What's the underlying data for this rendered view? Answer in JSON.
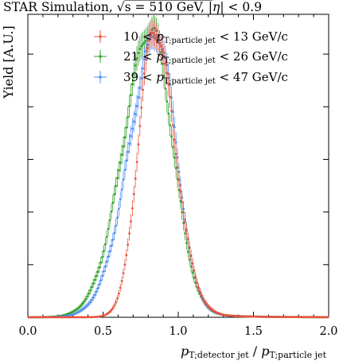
{
  "chart_data": {
    "type": "scatter",
    "title": "STAR Simulation, √s = 510 GeV, |η| < 0.9",
    "title_parts": {
      "lead": "STAR Simulation, ",
      "sqrt": "√",
      "s_eq": "s = 510 GeV, |",
      "eta": "η",
      "tail": "| < 0.9"
    },
    "xlabel": "pT;detector jet / pT;particle jet",
    "xlabel_parts": {
      "p1": "p",
      "sub1": "T;detector jet",
      "slash": " / ",
      "p2": "p",
      "sub2": "T;particle jet"
    },
    "ylabel": "Yield [A.U.]",
    "xlim": [
      0.0,
      2.0
    ],
    "ylim": [
      0,
      1.05
    ],
    "x_ticks": [
      0.0,
      0.5,
      1.0,
      1.5,
      2.0
    ],
    "x_tick_labels": [
      "0.0",
      "0.5",
      "1.0",
      "1.5",
      "2.0"
    ],
    "y_tick_labels_shown": false,
    "grid": false,
    "legend_position": "top-right",
    "series": [
      {
        "name": "10 < pT;particle jet < 13 GeV/c",
        "legend": {
          "lo": "10 < ",
          "p": "p",
          "sub": "T;particle jet",
          "hi": " < 13 GeV/c"
        },
        "color": "#e8523c",
        "mode": 0.84,
        "sigma_left": 0.105,
        "sigma_right": 0.135,
        "peak": 1.0
      },
      {
        "name": "21 < pT;particle jet < 26 GeV/c",
        "legend": {
          "lo": "21 < ",
          "p": "p",
          "sub": "T;particle jet",
          "hi": " < 26 GeV/c"
        },
        "color": "#33a02c",
        "mode": 0.82,
        "sigma_left": 0.185,
        "sigma_right": 0.14,
        "peak": 1.0
      },
      {
        "name": "39 < pT;particle jet < 47 GeV/c",
        "legend": {
          "lo": "39 < ",
          "p": "p",
          "sub": "T;particle jet",
          "hi": " < 47 GeV/c"
        },
        "color": "#4e8ef0",
        "mode": 0.86,
        "sigma_left": 0.185,
        "sigma_right": 0.125,
        "peak": 0.98
      }
    ]
  }
}
